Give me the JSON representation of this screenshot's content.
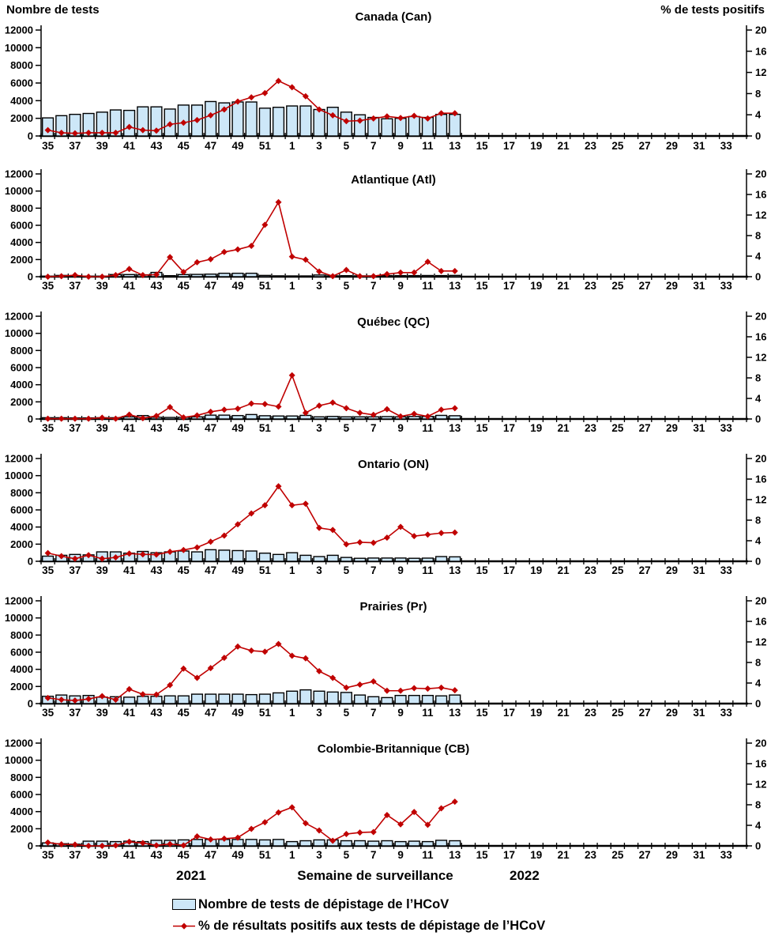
{
  "header": {
    "left_axis_title": "Nombre de tests",
    "right_axis_title": "% de tests positifs"
  },
  "footer": {
    "year_left": "2021",
    "x_axis_title": "Semaine de surveillance",
    "year_right": "2022"
  },
  "legend": {
    "items": [
      {
        "swatch": "bar-swatch",
        "label": "Nombre de tests de dépistage de l’HCoV"
      },
      {
        "swatch": "line-marker",
        "label": "% de résultats positifs aux tests de dépistage de l’HCoV"
      }
    ]
  },
  "colors": {
    "bar_fill": "#CDE7F8",
    "bar_border": "#000000",
    "line": "#C00000",
    "axis": "#000000"
  },
  "chart_data": {
    "type": "bar+line",
    "x_axis_title": "Semaine de surveillance",
    "x_axis_weeks": [
      35,
      36,
      37,
      38,
      39,
      40,
      41,
      42,
      43,
      44,
      45,
      46,
      47,
      48,
      49,
      50,
      51,
      52,
      1,
      2,
      3,
      4,
      5,
      6,
      7,
      8,
      9,
      10,
      11,
      12,
      13,
      14,
      15,
      16,
      17,
      18,
      19,
      20,
      21,
      22,
      23,
      24,
      25,
      26,
      27,
      28,
      29,
      30,
      31,
      32,
      33,
      34
    ],
    "data_weeks": [
      35,
      36,
      37,
      38,
      39,
      40,
      41,
      42,
      43,
      44,
      45,
      46,
      47,
      48,
      49,
      50,
      51,
      52,
      1,
      2,
      3,
      4,
      5,
      6,
      7,
      8,
      9,
      10,
      11,
      12,
      13
    ],
    "left_axis": {
      "title": "Nombre de tests",
      "min": 0,
      "max": 12000,
      "step": 2000
    },
    "right_axis": {
      "title": "% de tests positifs",
      "min": 0,
      "max": 20,
      "step": 4
    },
    "series_names": {
      "bars": "Nombre de tests de dépistage de l’HCoV",
      "line": "% de résultats positifs aux tests de dépistage de l’HCoV"
    },
    "panels": [
      {
        "key": "canada",
        "title": "Canada (Can)",
        "tests": [
          2050,
          2300,
          2450,
          2550,
          2700,
          2950,
          2900,
          3300,
          3300,
          3050,
          3500,
          3500,
          3900,
          3750,
          3850,
          3850,
          3150,
          3250,
          3400,
          3400,
          3000,
          3250,
          2700,
          2400,
          2100,
          1950,
          2000,
          2200,
          2100,
          2450,
          2450
        ],
        "pct_positive": [
          1.1,
          0.6,
          0.5,
          0.6,
          0.6,
          0.6,
          1.7,
          1.1,
          1.0,
          2.2,
          2.5,
          3.0,
          3.9,
          5.0,
          6.5,
          7.3,
          8.1,
          10.4,
          9.2,
          7.5,
          5.0,
          3.9,
          2.8,
          2.9,
          3.3,
          3.7,
          3.4,
          3.8,
          3.3,
          4.3,
          4.3
        ]
      },
      {
        "key": "atlantique",
        "title": "Atlantique (Atl)",
        "tests": [
          60,
          150,
          120,
          60,
          60,
          250,
          250,
          220,
          500,
          120,
          250,
          270,
          300,
          400,
          400,
          400,
          150,
          100,
          90,
          90,
          200,
          100,
          120,
          100,
          100,
          130,
          130,
          130,
          140,
          130,
          150
        ],
        "pct_positive": [
          0.0,
          0.1,
          0.3,
          0.0,
          0.0,
          0.3,
          1.5,
          0.3,
          0.4,
          3.8,
          0.9,
          2.8,
          3.4,
          4.8,
          5.3,
          6.0,
          10.1,
          14.5,
          3.9,
          3.3,
          1.0,
          0.1,
          1.3,
          0.1,
          0.1,
          0.5,
          0.8,
          0.8,
          2.9,
          1.1,
          1.1
        ]
      },
      {
        "key": "quebec",
        "title": "Québec (QC)",
        "tests": [
          150,
          150,
          130,
          130,
          150,
          150,
          250,
          400,
          200,
          180,
          200,
          250,
          450,
          450,
          400,
          520,
          380,
          350,
          350,
          420,
          250,
          300,
          250,
          250,
          250,
          280,
          250,
          300,
          300,
          420,
          380
        ],
        "pct_positive": [
          0.05,
          0.05,
          0.05,
          0.05,
          0.25,
          0.05,
          0.85,
          0.15,
          0.6,
          2.3,
          0.3,
          0.7,
          1.4,
          1.8,
          2.0,
          3.0,
          2.9,
          2.4,
          8.5,
          1.2,
          2.6,
          3.2,
          2.1,
          1.2,
          0.8,
          1.9,
          0.5,
          1.0,
          0.5,
          1.8,
          2.1
        ]
      },
      {
        "key": "ontario",
        "title": "Ontario (ON)",
        "tests": [
          600,
          700,
          800,
          750,
          1100,
          1100,
          950,
          1150,
          1000,
          1100,
          1200,
          1100,
          1350,
          1300,
          1250,
          1200,
          950,
          800,
          1000,
          700,
          550,
          700,
          450,
          350,
          380,
          380,
          380,
          350,
          370,
          550,
          520
        ],
        "pct_positive": [
          1.6,
          1.0,
          0.5,
          1.2,
          0.5,
          0.75,
          1.5,
          1.35,
          1.3,
          1.85,
          2.2,
          2.7,
          3.8,
          5.0,
          7.2,
          9.3,
          10.9,
          14.6,
          10.9,
          11.2,
          6.5,
          6.1,
          3.3,
          3.7,
          3.6,
          4.6,
          6.7,
          4.9,
          5.2,
          5.5,
          5.6
        ]
      },
      {
        "key": "prairies",
        "title": "Prairies (Pr)",
        "tests": [
          850,
          1000,
          900,
          950,
          750,
          800,
          750,
          850,
          850,
          900,
          900,
          1100,
          1100,
          1100,
          1100,
          1050,
          1100,
          1250,
          1450,
          1600,
          1450,
          1350,
          1300,
          1000,
          800,
          700,
          950,
          950,
          950,
          900,
          1000
        ],
        "pct_positive": [
          1.1,
          0.75,
          0.6,
          0.9,
          1.45,
          0.75,
          2.8,
          1.8,
          1.75,
          3.6,
          6.8,
          5.0,
          6.9,
          8.9,
          11.1,
          10.3,
          10.1,
          11.6,
          9.3,
          8.8,
          6.3,
          5.0,
          3.1,
          3.7,
          4.3,
          2.5,
          2.5,
          3.0,
          2.9,
          3.1,
          2.6
        ]
      },
      {
        "key": "colombie-britannique",
        "title": "Colombie-Britannique (CB)",
        "tests": [
          350,
          250,
          200,
          550,
          550,
          500,
          550,
          500,
          650,
          650,
          700,
          750,
          750,
          750,
          750,
          750,
          700,
          750,
          500,
          600,
          700,
          700,
          600,
          600,
          550,
          600,
          500,
          550,
          500,
          650,
          600
        ],
        "pct_positive": [
          0.65,
          0.3,
          0.25,
          0.0,
          0.0,
          0.1,
          0.8,
          0.55,
          0.1,
          0.35,
          0.1,
          1.85,
          1.25,
          1.4,
          1.6,
          3.3,
          4.6,
          6.5,
          7.5,
          4.4,
          3.0,
          1.0,
          2.3,
          2.6,
          2.7,
          6.0,
          4.2,
          6.6,
          4.1,
          7.3,
          8.6
        ]
      }
    ]
  }
}
